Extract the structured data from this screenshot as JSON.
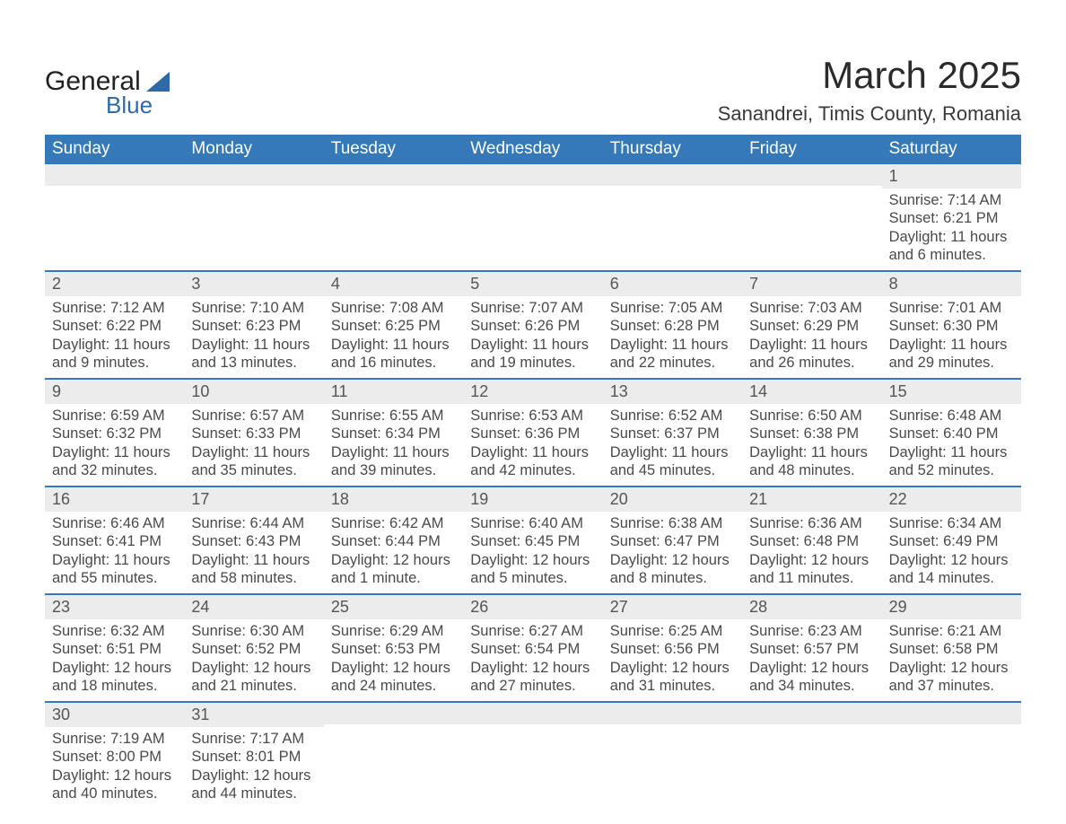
{
  "logo": {
    "word1": "General",
    "word2": "Blue"
  },
  "title": "March 2025",
  "location": "Sanandrei, Timis County, Romania",
  "colors": {
    "header_bg": "#3579b8",
    "header_text": "#ffffff",
    "row_divider": "#3579b8",
    "daynum_bg": "#ececec",
    "body_text": "#4a4a4a",
    "logo_blue": "#2f6aa6",
    "page_bg": "#ffffff"
  },
  "typography": {
    "title_fontsize_pt": 32,
    "location_fontsize_pt": 17,
    "dayheader_fontsize_pt": 14,
    "cell_fontsize_pt": 12
  },
  "day_headers": [
    "Sunday",
    "Monday",
    "Tuesday",
    "Wednesday",
    "Thursday",
    "Friday",
    "Saturday"
  ],
  "weeks": [
    [
      {
        "day": "",
        "sunrise": "",
        "sunset": "",
        "daylight": ""
      },
      {
        "day": "",
        "sunrise": "",
        "sunset": "",
        "daylight": ""
      },
      {
        "day": "",
        "sunrise": "",
        "sunset": "",
        "daylight": ""
      },
      {
        "day": "",
        "sunrise": "",
        "sunset": "",
        "daylight": ""
      },
      {
        "day": "",
        "sunrise": "",
        "sunset": "",
        "daylight": ""
      },
      {
        "day": "",
        "sunrise": "",
        "sunset": "",
        "daylight": ""
      },
      {
        "day": "1",
        "sunrise": "Sunrise: 7:14 AM",
        "sunset": "Sunset: 6:21 PM",
        "daylight": "Daylight: 11 hours and 6 minutes."
      }
    ],
    [
      {
        "day": "2",
        "sunrise": "Sunrise: 7:12 AM",
        "sunset": "Sunset: 6:22 PM",
        "daylight": "Daylight: 11 hours and 9 minutes."
      },
      {
        "day": "3",
        "sunrise": "Sunrise: 7:10 AM",
        "sunset": "Sunset: 6:23 PM",
        "daylight": "Daylight: 11 hours and 13 minutes."
      },
      {
        "day": "4",
        "sunrise": "Sunrise: 7:08 AM",
        "sunset": "Sunset: 6:25 PM",
        "daylight": "Daylight: 11 hours and 16 minutes."
      },
      {
        "day": "5",
        "sunrise": "Sunrise: 7:07 AM",
        "sunset": "Sunset: 6:26 PM",
        "daylight": "Daylight: 11 hours and 19 minutes."
      },
      {
        "day": "6",
        "sunrise": "Sunrise: 7:05 AM",
        "sunset": "Sunset: 6:28 PM",
        "daylight": "Daylight: 11 hours and 22 minutes."
      },
      {
        "day": "7",
        "sunrise": "Sunrise: 7:03 AM",
        "sunset": "Sunset: 6:29 PM",
        "daylight": "Daylight: 11 hours and 26 minutes."
      },
      {
        "day": "8",
        "sunrise": "Sunrise: 7:01 AM",
        "sunset": "Sunset: 6:30 PM",
        "daylight": "Daylight: 11 hours and 29 minutes."
      }
    ],
    [
      {
        "day": "9",
        "sunrise": "Sunrise: 6:59 AM",
        "sunset": "Sunset: 6:32 PM",
        "daylight": "Daylight: 11 hours and 32 minutes."
      },
      {
        "day": "10",
        "sunrise": "Sunrise: 6:57 AM",
        "sunset": "Sunset: 6:33 PM",
        "daylight": "Daylight: 11 hours and 35 minutes."
      },
      {
        "day": "11",
        "sunrise": "Sunrise: 6:55 AM",
        "sunset": "Sunset: 6:34 PM",
        "daylight": "Daylight: 11 hours and 39 minutes."
      },
      {
        "day": "12",
        "sunrise": "Sunrise: 6:53 AM",
        "sunset": "Sunset: 6:36 PM",
        "daylight": "Daylight: 11 hours and 42 minutes."
      },
      {
        "day": "13",
        "sunrise": "Sunrise: 6:52 AM",
        "sunset": "Sunset: 6:37 PM",
        "daylight": "Daylight: 11 hours and 45 minutes."
      },
      {
        "day": "14",
        "sunrise": "Sunrise: 6:50 AM",
        "sunset": "Sunset: 6:38 PM",
        "daylight": "Daylight: 11 hours and 48 minutes."
      },
      {
        "day": "15",
        "sunrise": "Sunrise: 6:48 AM",
        "sunset": "Sunset: 6:40 PM",
        "daylight": "Daylight: 11 hours and 52 minutes."
      }
    ],
    [
      {
        "day": "16",
        "sunrise": "Sunrise: 6:46 AM",
        "sunset": "Sunset: 6:41 PM",
        "daylight": "Daylight: 11 hours and 55 minutes."
      },
      {
        "day": "17",
        "sunrise": "Sunrise: 6:44 AM",
        "sunset": "Sunset: 6:43 PM",
        "daylight": "Daylight: 11 hours and 58 minutes."
      },
      {
        "day": "18",
        "sunrise": "Sunrise: 6:42 AM",
        "sunset": "Sunset: 6:44 PM",
        "daylight": "Daylight: 12 hours and 1 minute."
      },
      {
        "day": "19",
        "sunrise": "Sunrise: 6:40 AM",
        "sunset": "Sunset: 6:45 PM",
        "daylight": "Daylight: 12 hours and 5 minutes."
      },
      {
        "day": "20",
        "sunrise": "Sunrise: 6:38 AM",
        "sunset": "Sunset: 6:47 PM",
        "daylight": "Daylight: 12 hours and 8 minutes."
      },
      {
        "day": "21",
        "sunrise": "Sunrise: 6:36 AM",
        "sunset": "Sunset: 6:48 PM",
        "daylight": "Daylight: 12 hours and 11 minutes."
      },
      {
        "day": "22",
        "sunrise": "Sunrise: 6:34 AM",
        "sunset": "Sunset: 6:49 PM",
        "daylight": "Daylight: 12 hours and 14 minutes."
      }
    ],
    [
      {
        "day": "23",
        "sunrise": "Sunrise: 6:32 AM",
        "sunset": "Sunset: 6:51 PM",
        "daylight": "Daylight: 12 hours and 18 minutes."
      },
      {
        "day": "24",
        "sunrise": "Sunrise: 6:30 AM",
        "sunset": "Sunset: 6:52 PM",
        "daylight": "Daylight: 12 hours and 21 minutes."
      },
      {
        "day": "25",
        "sunrise": "Sunrise: 6:29 AM",
        "sunset": "Sunset: 6:53 PM",
        "daylight": "Daylight: 12 hours and 24 minutes."
      },
      {
        "day": "26",
        "sunrise": "Sunrise: 6:27 AM",
        "sunset": "Sunset: 6:54 PM",
        "daylight": "Daylight: 12 hours and 27 minutes."
      },
      {
        "day": "27",
        "sunrise": "Sunrise: 6:25 AM",
        "sunset": "Sunset: 6:56 PM",
        "daylight": "Daylight: 12 hours and 31 minutes."
      },
      {
        "day": "28",
        "sunrise": "Sunrise: 6:23 AM",
        "sunset": "Sunset: 6:57 PM",
        "daylight": "Daylight: 12 hours and 34 minutes."
      },
      {
        "day": "29",
        "sunrise": "Sunrise: 6:21 AM",
        "sunset": "Sunset: 6:58 PM",
        "daylight": "Daylight: 12 hours and 37 minutes."
      }
    ],
    [
      {
        "day": "30",
        "sunrise": "Sunrise: 7:19 AM",
        "sunset": "Sunset: 8:00 PM",
        "daylight": "Daylight: 12 hours and 40 minutes."
      },
      {
        "day": "31",
        "sunrise": "Sunrise: 7:17 AM",
        "sunset": "Sunset: 8:01 PM",
        "daylight": "Daylight: 12 hours and 44 minutes."
      },
      {
        "day": "",
        "sunrise": "",
        "sunset": "",
        "daylight": ""
      },
      {
        "day": "",
        "sunrise": "",
        "sunset": "",
        "daylight": ""
      },
      {
        "day": "",
        "sunrise": "",
        "sunset": "",
        "daylight": ""
      },
      {
        "day": "",
        "sunrise": "",
        "sunset": "",
        "daylight": ""
      },
      {
        "day": "",
        "sunrise": "",
        "sunset": "",
        "daylight": ""
      }
    ]
  ]
}
